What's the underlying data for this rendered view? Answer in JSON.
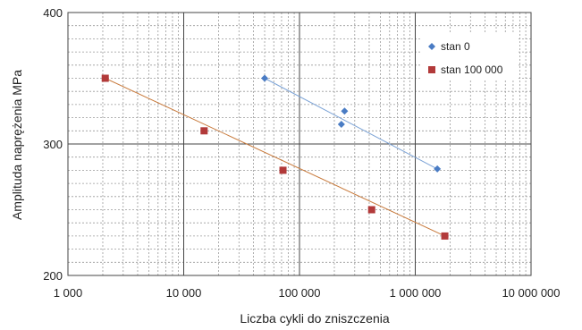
{
  "chart_data": {
    "type": "scatter",
    "xlabel": "Liczba cykli do zniszczenia",
    "ylabel": "Amplituda naprężenia MPa",
    "x_scale": "log",
    "xlim": [
      1000,
      10000000
    ],
    "ylim": [
      200,
      400
    ],
    "x_ticks": [
      {
        "value": 1000,
        "label": "1 000"
      },
      {
        "value": 10000,
        "label": "10 000"
      },
      {
        "value": 100000,
        "label": "100 000"
      },
      {
        "value": 1000000,
        "label": "1 000 000"
      },
      {
        "value": 10000000,
        "label": "10 000 000"
      }
    ],
    "y_ticks": [
      {
        "value": 200,
        "label": "200"
      },
      {
        "value": 300,
        "label": "300"
      },
      {
        "value": 400,
        "label": "400"
      }
    ],
    "grid": true,
    "legend_position": "top-right",
    "series": [
      {
        "name": "stan 0",
        "marker": "diamond",
        "color": "#4a7cc4",
        "trendline_color": "#7ca3d6",
        "trendline": [
          [
            50000,
            350
          ],
          [
            1550000,
            281
          ]
        ],
        "points": [
          {
            "x": 50000,
            "y": 350
          },
          {
            "x": 230000,
            "y": 315
          },
          {
            "x": 245000,
            "y": 325
          },
          {
            "x": 1550000,
            "y": 281
          }
        ]
      },
      {
        "name": "stan 100 000",
        "marker": "square",
        "color": "#b23a3a",
        "trendline_color": "#c87a3c",
        "trendline": [
          [
            2100,
            350
          ],
          [
            1800000,
            230
          ]
        ],
        "points": [
          {
            "x": 2100,
            "y": 350
          },
          {
            "x": 15000,
            "y": 310
          },
          {
            "x": 72000,
            "y": 280
          },
          {
            "x": 420000,
            "y": 250
          },
          {
            "x": 1800000,
            "y": 230
          }
        ]
      }
    ]
  }
}
